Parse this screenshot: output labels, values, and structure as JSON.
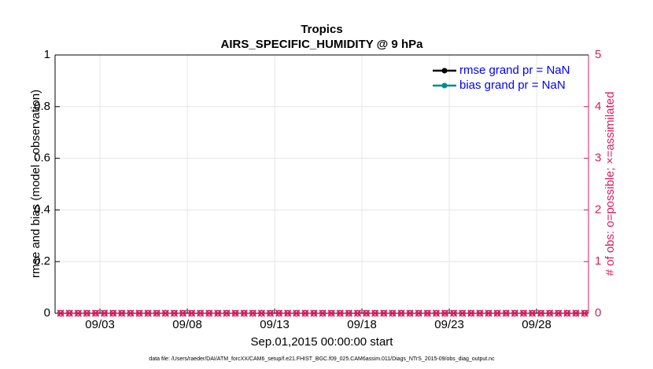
{
  "chart_data": {
    "type": "line",
    "title": "Tropics",
    "subtitle": "AIRS_SPECIFIC_HUMIDITY @ 9 hPa",
    "xlabel": "Sep.01,2015 00:00:00 start",
    "ylabel": "rmse and bias (model - observation)",
    "y2label": "# of obs: o=possible; ×=assimilated",
    "footnote": "data file: /Users/raeder/DAI/ATM_forcXX/CAM6_setup/f.e21.FHIST_BGC.f09_025.CAM6assim.011/Diags_NTrS_2015-09/obs_diag_output.nc",
    "xlim": [
      0.43,
      30.97
    ],
    "xticks": [
      {
        "value": 3,
        "label": "09/03"
      },
      {
        "value": 8,
        "label": "09/08"
      },
      {
        "value": 13,
        "label": "09/13"
      },
      {
        "value": 18,
        "label": "09/18"
      },
      {
        "value": 23,
        "label": "09/23"
      },
      {
        "value": 28,
        "label": "09/28"
      }
    ],
    "ylim": [
      0,
      1
    ],
    "yticks": [
      0,
      0.2,
      0.4,
      0.6,
      0.8,
      1
    ],
    "y2lim": [
      0,
      5
    ],
    "y2ticks": [
      0,
      1,
      2,
      3,
      4,
      5
    ],
    "y2color": "#d81b60",
    "grid": true,
    "legend": "upper right",
    "legend_text_color": "#0000ff",
    "x": [
      0.75,
      1.25,
      1.75,
      2.25,
      2.75,
      3.25,
      3.75,
      4.25,
      4.75,
      5.25,
      5.75,
      6.25,
      6.75,
      7.25,
      7.75,
      8.25,
      8.75,
      9.25,
      9.75,
      10.25,
      10.75,
      11.25,
      11.75,
      12.25,
      12.75,
      13.25,
      13.75,
      14.25,
      14.75,
      15.25,
      15.75,
      16.25,
      16.75,
      17.25,
      17.75,
      18.25,
      18.75,
      19.25,
      19.75,
      20.25,
      20.75,
      21.25,
      21.75,
      22.25,
      22.75,
      23.25,
      23.75,
      24.25,
      24.75,
      25.25,
      25.75,
      26.25,
      26.75,
      27.25,
      27.75,
      28.25,
      28.75,
      29.25,
      29.75,
      30.25,
      30.75
    ],
    "series": [
      {
        "name": "rmse grand pr = NaN",
        "color": "#000000",
        "marker": "o"
      },
      {
        "name": "bias grand pr = NaN",
        "color": "#008b8b",
        "marker": "o"
      },
      {
        "color": "#d81b60",
        "axis": "y2",
        "marker": "o",
        "values": [
          0,
          0,
          0,
          0,
          0,
          0,
          0,
          0,
          0,
          0,
          0,
          0,
          0,
          0,
          0,
          0,
          0,
          0,
          0,
          0,
          0,
          0,
          0,
          0,
          0,
          0,
          0,
          0,
          0,
          0,
          0,
          0,
          0,
          0,
          0,
          0,
          0,
          0,
          0,
          0,
          0,
          0,
          0,
          0,
          0,
          0,
          0,
          0,
          0,
          0,
          0,
          0,
          0,
          0,
          0,
          0,
          0,
          0,
          0,
          0,
          0
        ]
      },
      {
        "color": "#d81b60",
        "axis": "y2",
        "marker": "x",
        "values": [
          0,
          0,
          0,
          0,
          0,
          0,
          0,
          0,
          0,
          0,
          0,
          0,
          0,
          0,
          0,
          0,
          0,
          0,
          0,
          0,
          0,
          0,
          0,
          0,
          0,
          0,
          0,
          0,
          0,
          0,
          0,
          0,
          0,
          0,
          0,
          0,
          0,
          0,
          0,
          0,
          0,
          0,
          0,
          0,
          0,
          0,
          0,
          0,
          0,
          0,
          0,
          0,
          0,
          0,
          0,
          0,
          0,
          0,
          0,
          0,
          0
        ]
      }
    ]
  }
}
